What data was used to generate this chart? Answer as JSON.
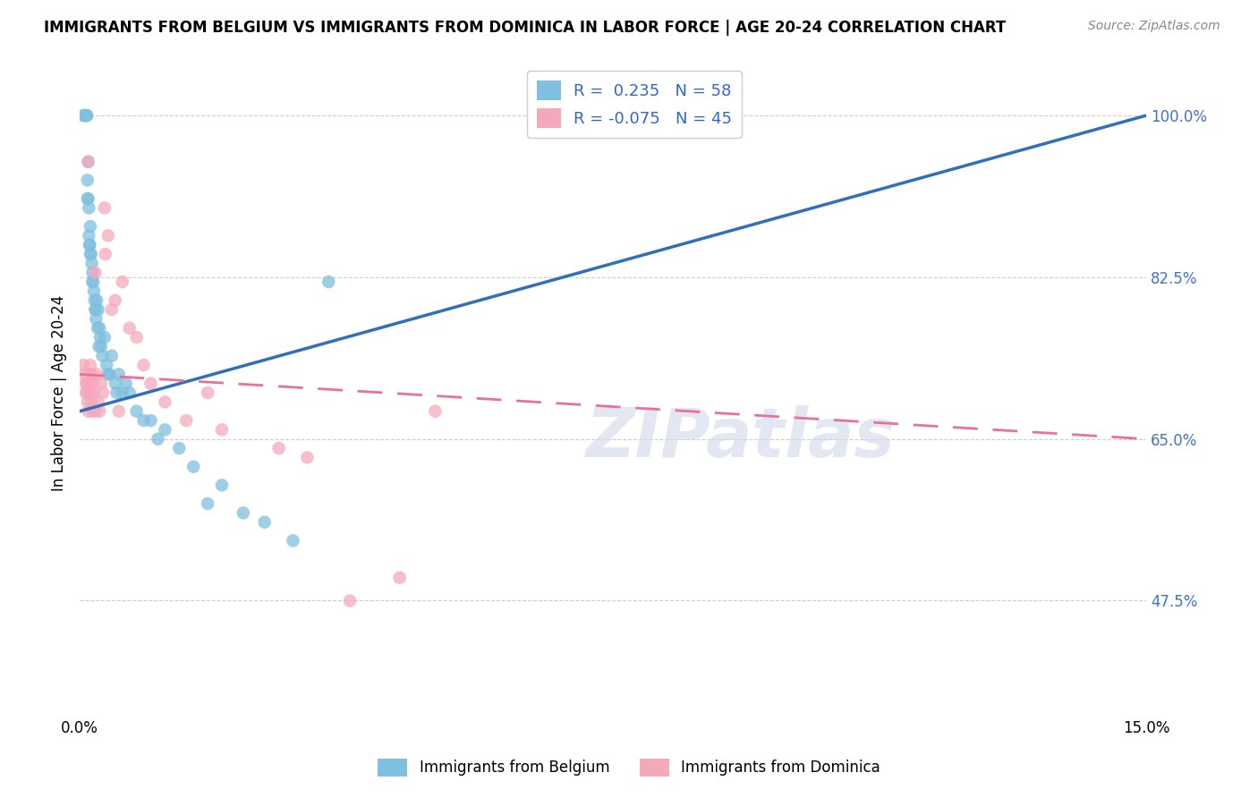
{
  "title": "IMMIGRANTS FROM BELGIUM VS IMMIGRANTS FROM DOMINICA IN LABOR FORCE | AGE 20-24 CORRELATION CHART",
  "source": "Source: ZipAtlas.com",
  "ylabel": "In Labor Force | Age 20-24",
  "xlim": [
    0.0,
    15.0
  ],
  "ylim": [
    35.0,
    105.0
  ],
  "xticks": [
    0.0,
    15.0
  ],
  "xticklabels": [
    "0.0%",
    "15.0%"
  ],
  "yticks": [
    47.5,
    65.0,
    82.5,
    100.0
  ],
  "yticklabels": [
    "47.5%",
    "65.0%",
    "82.5%",
    "100.0%"
  ],
  "belgium_R": 0.235,
  "belgium_N": 58,
  "dominica_R": -0.075,
  "dominica_N": 45,
  "belgium_color": "#7fbfdf",
  "dominica_color": "#f5a8bc",
  "belgium_trend_color": "#3070b8",
  "dominica_trend_color": "#e8709a",
  "watermark": "ZIPatlas",
  "belgium_trend_x0": 0.0,
  "belgium_trend_y0": 68.0,
  "belgium_trend_x1": 15.0,
  "belgium_trend_y1": 100.0,
  "dominica_trend_x0": 0.0,
  "dominica_trend_y0": 72.0,
  "dominica_trend_x1": 15.0,
  "dominica_trend_y1": 65.0,
  "belgium_x": [
    0.05,
    0.07,
    0.08,
    0.09,
    0.1,
    0.1,
    0.11,
    0.11,
    0.12,
    0.13,
    0.13,
    0.14,
    0.15,
    0.15,
    0.16,
    0.17,
    0.18,
    0.19,
    0.2,
    0.21,
    0.22,
    0.23,
    0.24,
    0.25,
    0.26,
    0.27,
    0.28,
    0.3,
    0.32,
    0.35,
    0.38,
    0.4,
    0.45,
    0.5,
    0.55,
    0.6,
    0.65,
    0.7,
    0.8,
    0.9,
    1.0,
    1.1,
    1.2,
    1.4,
    1.6,
    1.8,
    2.0,
    2.3,
    2.6,
    3.0,
    0.12,
    0.14,
    0.18,
    0.22,
    0.29,
    0.42,
    0.52,
    3.5
  ],
  "belgium_y": [
    100.0,
    100.0,
    100.0,
    100.0,
    100.0,
    100.0,
    93.0,
    91.0,
    95.0,
    90.0,
    87.0,
    86.0,
    88.0,
    85.0,
    85.0,
    84.0,
    83.0,
    82.0,
    81.0,
    80.0,
    79.0,
    78.0,
    80.0,
    77.0,
    79.0,
    75.0,
    77.0,
    75.0,
    74.0,
    76.0,
    73.0,
    72.0,
    74.0,
    71.0,
    72.0,
    70.0,
    71.0,
    70.0,
    68.0,
    67.0,
    67.0,
    65.0,
    66.0,
    64.0,
    62.0,
    58.0,
    60.0,
    57.0,
    56.0,
    54.0,
    91.0,
    86.0,
    82.0,
    79.0,
    76.0,
    72.0,
    70.0,
    82.0
  ],
  "dominica_x": [
    0.05,
    0.07,
    0.08,
    0.09,
    0.1,
    0.1,
    0.11,
    0.12,
    0.13,
    0.14,
    0.15,
    0.15,
    0.16,
    0.17,
    0.18,
    0.19,
    0.2,
    0.22,
    0.24,
    0.26,
    0.28,
    0.3,
    0.33,
    0.36,
    0.4,
    0.45,
    0.5,
    0.6,
    0.7,
    0.8,
    0.9,
    1.0,
    1.2,
    1.5,
    2.0,
    2.8,
    3.2,
    3.8,
    4.5,
    5.0,
    0.12,
    0.22,
    0.35,
    0.55,
    1.8
  ],
  "dominica_y": [
    73.0,
    72.0,
    71.0,
    70.0,
    71.0,
    70.0,
    69.0,
    68.0,
    72.0,
    71.0,
    70.0,
    73.0,
    69.0,
    72.0,
    68.0,
    71.0,
    70.0,
    68.0,
    72.0,
    69.0,
    68.0,
    71.0,
    70.0,
    85.0,
    87.0,
    79.0,
    80.0,
    82.0,
    77.0,
    76.0,
    73.0,
    71.0,
    69.0,
    67.0,
    66.0,
    64.0,
    63.0,
    47.5,
    50.0,
    68.0,
    95.0,
    83.0,
    90.0,
    68.0,
    70.0
  ]
}
